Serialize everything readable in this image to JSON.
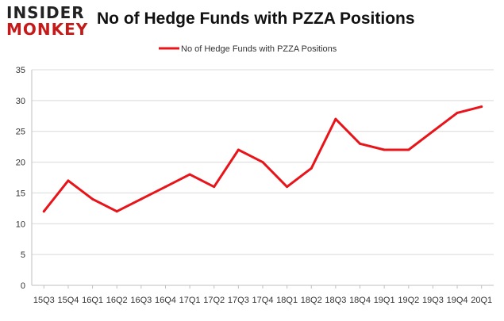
{
  "logo": {
    "line1": "INSIDER",
    "line2": "MONKEY"
  },
  "colors": {
    "series": "#e8141a",
    "grid": "#d9d9d9",
    "axis": "#bfbfbf",
    "logo_red": "#c41a1a"
  },
  "chart_data": {
    "type": "line",
    "title": "No of Hedge Funds with PZZA Positions",
    "xlabel": "",
    "ylabel": "",
    "categories": [
      "15Q3",
      "15Q4",
      "16Q1",
      "16Q2",
      "16Q3",
      "16Q4",
      "17Q1",
      "17Q2",
      "17Q3",
      "17Q4",
      "18Q1",
      "18Q2",
      "18Q3",
      "18Q4",
      "19Q1",
      "19Q2",
      "19Q3",
      "19Q4",
      "20Q1"
    ],
    "series": [
      {
        "name": "No of Hedge Funds with PZZA Positions",
        "values": [
          12,
          17,
          14,
          12,
          14,
          16,
          18,
          16,
          22,
          20,
          16,
          19,
          27,
          23,
          22,
          22,
          25,
          28,
          29
        ]
      }
    ],
    "ylim": [
      0,
      35
    ],
    "yticks": [
      0,
      5,
      10,
      15,
      20,
      25,
      30,
      35
    ],
    "grid": true,
    "legend": "top-center"
  }
}
